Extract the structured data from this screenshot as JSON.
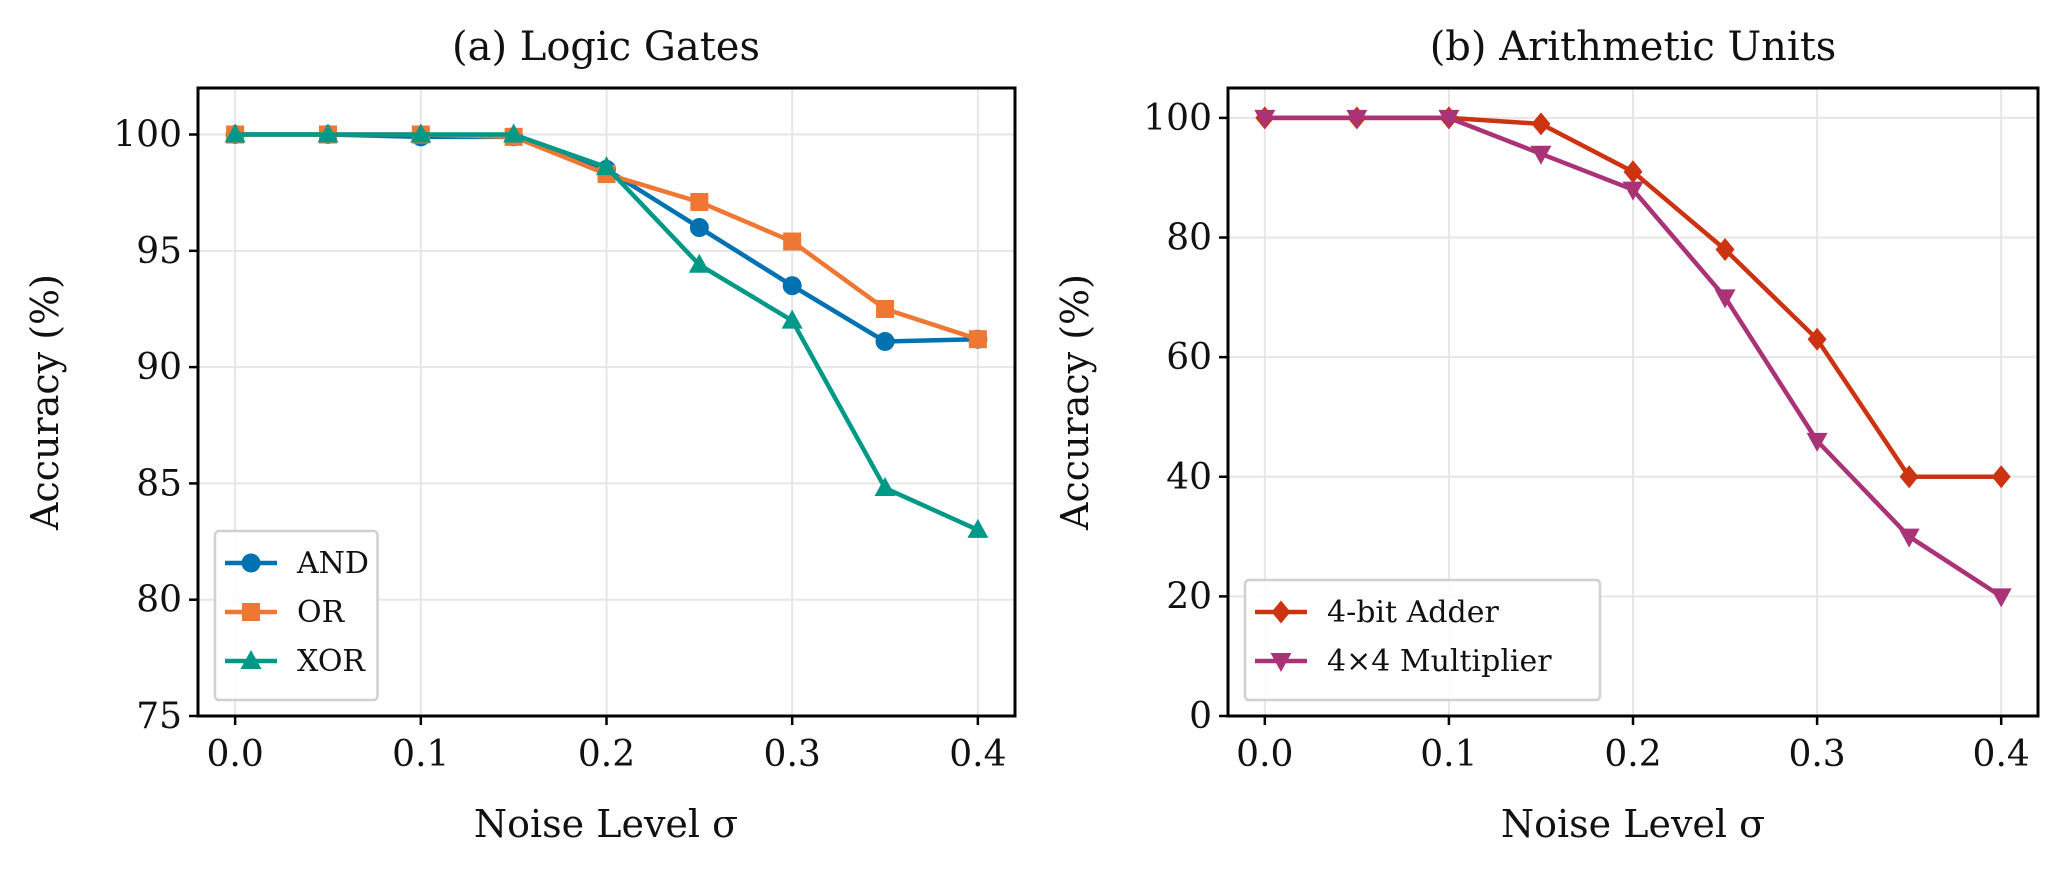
{
  "chart_data": [
    {
      "type": "line",
      "title": "(a) Logic Gates",
      "xlabel": "Noise Level σ",
      "ylabel": "Accuracy (%)",
      "xlim": [
        -0.02,
        0.42
      ],
      "ylim": [
        75,
        102
      ],
      "xticks": [
        0.0,
        0.1,
        0.2,
        0.3,
        0.4
      ],
      "xtick_labels": [
        "0.0",
        "0.1",
        "0.2",
        "0.3",
        "0.4"
      ],
      "yticks": [
        75,
        80,
        85,
        90,
        95,
        100
      ],
      "ytick_labels": [
        "75",
        "80",
        "85",
        "90",
        "95",
        "100"
      ],
      "grid": true,
      "legend_position": "lower-left",
      "x": [
        0.0,
        0.05,
        0.1,
        0.15,
        0.2,
        0.25,
        0.3,
        0.35,
        0.4
      ],
      "series": [
        {
          "name": "AND",
          "color": "#0072B2",
          "marker": "circle",
          "values": [
            100.0,
            100.0,
            99.9,
            99.9,
            98.5,
            96.0,
            93.5,
            91.1,
            91.2
          ]
        },
        {
          "name": "OR",
          "color": "#EE7733",
          "marker": "square",
          "values": [
            100.0,
            100.0,
            100.0,
            99.9,
            98.3,
            97.1,
            95.4,
            92.5,
            91.2
          ]
        },
        {
          "name": "XOR",
          "color": "#009988",
          "marker": "triangle-up",
          "values": [
            100.0,
            100.0,
            100.0,
            100.0,
            98.6,
            94.4,
            92.0,
            84.8,
            83.0
          ]
        }
      ]
    },
    {
      "type": "line",
      "title": "(b) Arithmetic Units",
      "xlabel": "Noise Level σ",
      "ylabel": "Accuracy (%)",
      "xlim": [
        -0.02,
        0.42
      ],
      "ylim": [
        0,
        105
      ],
      "xticks": [
        0.0,
        0.1,
        0.2,
        0.3,
        0.4
      ],
      "xtick_labels": [
        "0.0",
        "0.1",
        "0.2",
        "0.3",
        "0.4"
      ],
      "yticks": [
        0,
        20,
        40,
        60,
        80,
        100
      ],
      "ytick_labels": [
        "0",
        "20",
        "40",
        "60",
        "80",
        "100"
      ],
      "grid": true,
      "legend_position": "lower-left",
      "x": [
        0.0,
        0.05,
        0.1,
        0.15,
        0.2,
        0.25,
        0.3,
        0.35,
        0.4
      ],
      "series": [
        {
          "name": "4-bit Adder",
          "color": "#CC3311",
          "marker": "diamond",
          "values": [
            100,
            100,
            100,
            99,
            91,
            78,
            63,
            40,
            40
          ]
        },
        {
          "name": "4×4 Multiplier",
          "color": "#AA3377",
          "marker": "triangle-down",
          "values": [
            100,
            100,
            100,
            94,
            88,
            70,
            46,
            30,
            20
          ]
        }
      ]
    }
  ]
}
